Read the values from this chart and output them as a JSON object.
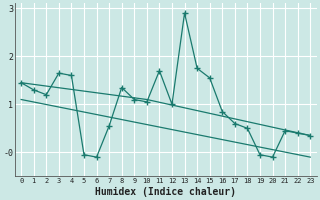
{
  "title": "",
  "xlabel": "Humidex (Indice chaleur)",
  "bg_color": "#cce8e5",
  "grid_color": "#ffffff",
  "line_color": "#1a7a6e",
  "x_data": [
    0,
    1,
    2,
    3,
    4,
    5,
    6,
    7,
    8,
    9,
    10,
    11,
    12,
    13,
    14,
    15,
    16,
    17,
    18,
    19,
    20,
    21,
    22,
    23
  ],
  "y_main": [
    1.45,
    1.3,
    1.2,
    1.65,
    1.6,
    -0.05,
    -0.1,
    0.55,
    1.35,
    1.1,
    1.05,
    1.7,
    1.0,
    2.9,
    1.75,
    1.55,
    0.85,
    0.6,
    0.5,
    -0.05,
    -0.1,
    0.45,
    0.4,
    0.35
  ],
  "trend1_x": [
    0,
    10,
    23
  ],
  "trend1_y": [
    1.45,
    1.1,
    0.35
  ],
  "trend2_x": [
    0,
    23
  ],
  "trend2_y": [
    1.1,
    -0.1
  ],
  "ylim": [
    -0.5,
    3.1
  ],
  "xlim": [
    -0.5,
    23.5
  ],
  "ytick_vals": [
    0,
    1,
    2,
    3
  ],
  "ytick_labels": [
    "-0",
    "1",
    "2",
    "3"
  ],
  "xtick_labels": [
    "0",
    "1",
    "2",
    "3",
    "4",
    "5",
    "6",
    "7",
    "8",
    "9",
    "10",
    "11",
    "12",
    "13",
    "14",
    "15",
    "16",
    "17",
    "18",
    "19",
    "20",
    "21",
    "22",
    "23"
  ]
}
